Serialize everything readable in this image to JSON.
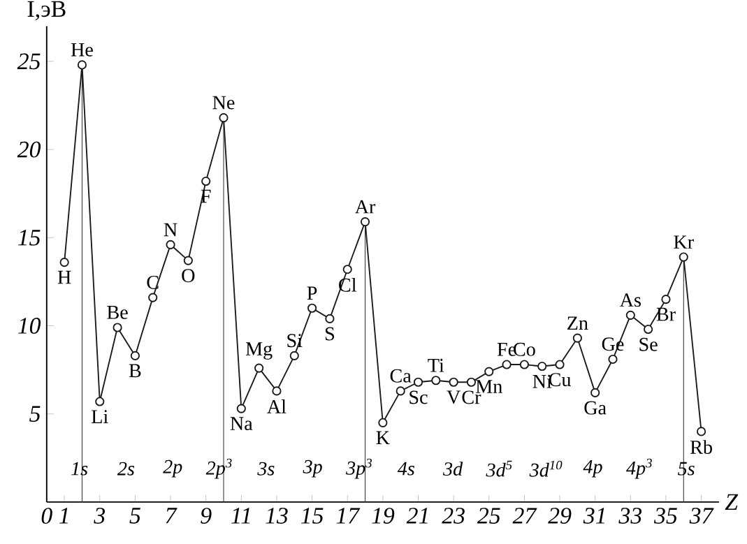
{
  "chart_data": {
    "type": "line",
    "xlabel": "Z",
    "ylabel": "I,эВ",
    "x": [
      1,
      2,
      3,
      4,
      5,
      6,
      7,
      8,
      9,
      10,
      11,
      12,
      13,
      14,
      15,
      16,
      17,
      18,
      19,
      20,
      21,
      22,
      23,
      24,
      25,
      26,
      27,
      28,
      29,
      30,
      31,
      32,
      33,
      34,
      35,
      36,
      37
    ],
    "values": [
      13.6,
      24.8,
      5.7,
      9.9,
      8.3,
      11.6,
      14.6,
      13.7,
      18.2,
      21.8,
      5.3,
      7.6,
      6.3,
      8.3,
      11.0,
      10.4,
      13.2,
      15.9,
      4.5,
      6.3,
      6.8,
      6.9,
      6.8,
      6.8,
      7.4,
      7.8,
      7.8,
      7.7,
      7.8,
      9.3,
      6.2,
      8.1,
      10.6,
      9.8,
      11.5,
      13.9,
      4.0
    ],
    "color": "#1a1a1a",
    "marker": "circle",
    "line_style": "solid",
    "xlim": [
      0,
      38
    ],
    "ylim": [
      0,
      27
    ],
    "xticks": [
      0,
      1,
      3,
      5,
      7,
      9,
      11,
      13,
      15,
      17,
      19,
      21,
      23,
      25,
      27,
      29,
      31,
      33,
      35,
      37
    ],
    "yticks": [
      5,
      10,
      15,
      20,
      25
    ],
    "ref_lines": [
      {
        "axis": "x",
        "value": 2
      },
      {
        "axis": "x",
        "value": 10
      },
      {
        "axis": "x",
        "value": 18
      },
      {
        "axis": "x",
        "value": 36
      }
    ],
    "annotations": [
      {
        "text": "H",
        "x": 1,
        "y": 13.6
      },
      {
        "text": "He",
        "x": 2,
        "y": 24.8
      },
      {
        "text": "Li",
        "x": 3,
        "y": 5.7
      },
      {
        "text": "Be",
        "x": 4,
        "y": 9.9
      },
      {
        "text": "B",
        "x": 5,
        "y": 8.3
      },
      {
        "text": "C",
        "x": 6,
        "y": 11.6
      },
      {
        "text": "N",
        "x": 7,
        "y": 14.6
      },
      {
        "text": "O",
        "x": 8,
        "y": 13.7
      },
      {
        "text": "F",
        "x": 9,
        "y": 18.2
      },
      {
        "text": "Ne",
        "x": 10,
        "y": 21.8
      },
      {
        "text": "Na",
        "x": 11,
        "y": 5.3
      },
      {
        "text": "Mg",
        "x": 12,
        "y": 7.6
      },
      {
        "text": "Al",
        "x": 13,
        "y": 6.3
      },
      {
        "text": "Si",
        "x": 14,
        "y": 8.3
      },
      {
        "text": "P",
        "x": 15,
        "y": 11.0
      },
      {
        "text": "S",
        "x": 16,
        "y": 10.4
      },
      {
        "text": "Cl",
        "x": 17,
        "y": 13.2
      },
      {
        "text": "Ar",
        "x": 18,
        "y": 15.9
      },
      {
        "text": "K",
        "x": 19,
        "y": 4.5
      },
      {
        "text": "Ca",
        "x": 20,
        "y": 6.3
      },
      {
        "text": "Sc",
        "x": 21,
        "y": 6.8
      },
      {
        "text": "Ti",
        "x": 22,
        "y": 6.9
      },
      {
        "text": "V",
        "x": 23,
        "y": 6.8
      },
      {
        "text": "Cr",
        "x": 24,
        "y": 6.8
      },
      {
        "text": "Mn",
        "x": 25,
        "y": 7.4
      },
      {
        "text": "Fe",
        "x": 26,
        "y": 7.8
      },
      {
        "text": "Co",
        "x": 27,
        "y": 7.8
      },
      {
        "text": "Ni",
        "x": 28,
        "y": 7.7
      },
      {
        "text": "Cu",
        "x": 29,
        "y": 7.8
      },
      {
        "text": "Zn",
        "x": 30,
        "y": 9.3
      },
      {
        "text": "Ga",
        "x": 31,
        "y": 6.2
      },
      {
        "text": "Ge",
        "x": 32,
        "y": 8.1
      },
      {
        "text": "As",
        "x": 33,
        "y": 10.6
      },
      {
        "text": "Se",
        "x": 34,
        "y": 9.8
      },
      {
        "text": "Br",
        "x": 35,
        "y": 11.5
      },
      {
        "text": "Kr",
        "x": 36,
        "y": 13.9
      },
      {
        "text": "Rb",
        "x": 37,
        "y": 4.0
      },
      "1s",
      "2s",
      "2p",
      "2p$^{3}$",
      "3s",
      "3p",
      "3p$^{3}$",
      "4s",
      "3d",
      "3d$^{5}$",
      "3d$^{10}$",
      "4p",
      "4p$^{3}$",
      "5s"
    ]
  }
}
